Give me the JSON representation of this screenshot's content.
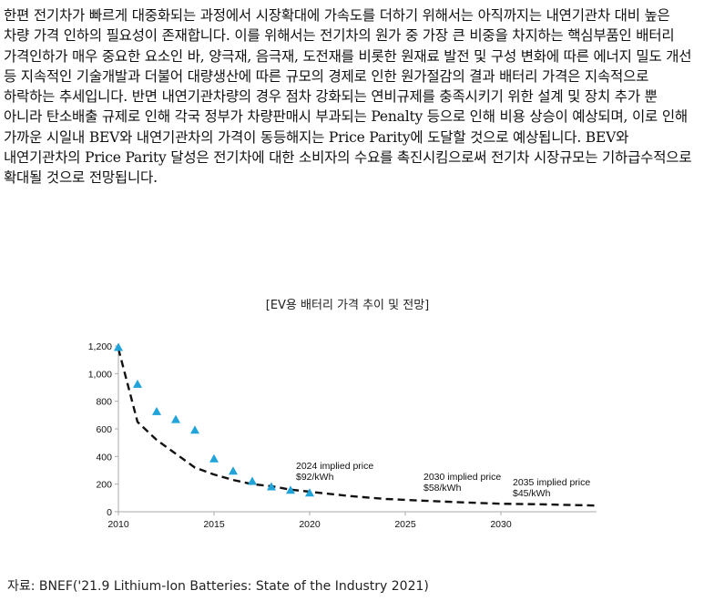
{
  "paragraph": "한편 전기차가 빠르게 대중화되는 과정에서 시장확대에 가속도를 더하기 위해서는 아직까지는 내연기관차 대비 높은 차량 가격 인하의 필요성이 존재합니다. 이를 위해서는 전기차의 원가 중 가장 큰 비중을 차지하는 핵심부품인 배터리 가격인하가 매우 중요한 요소인 바, 양극재, 음극재, 도전재를 비롯한 원재료 발전 및 구성 변화에 따른 에너지 밀도 개선 등 지속적인 기술개발과 더불어 대량생산에 따른 규모의 경제로 인한 원가절감의 결과 배터리 가격은 지속적으로 하락하는 추세입니다. 반면 내연기관차량의 경우 점차 강화되는 연비규제를 충족시키기 위한 설계 및 장치 추가 뿐 아니라 탄소배출 규제로 인해 각국 정부가 차량판매시 부과되는 Penalty 등으로 인해 비용 상승이 예상되며, 이로 인해 가까운 시일내 BEV와 내연기관차의 가격이 동등해지는 Price Parity에 도달할 것으로 예상됩니다. BEV와 내연기관차의 Price Parity 달성은 전기차에 대한 소비자의 수요를 촉진시킴으로써 전기차 시장규모는 기하급수적으로 확대될 것으로 전망됩니다.",
  "chart_title": "[EV용 배터리 가격 추이 및 전망]",
  "source": "자료: BNEF('21.9 Lithium-Ion Batteries: State of the Industry 2021)",
  "chart_data": {
    "type": "scatter",
    "title": "[EV용 배터리 가격 추이 및 전망]",
    "xlabel": "",
    "ylabel": "",
    "xlim": [
      2010,
      2035
    ],
    "ylim": [
      0,
      1200
    ],
    "x_ticks": [
      2010,
      2015,
      2020,
      2025,
      2030
    ],
    "y_ticks": [
      {
        "v": 0,
        "label": "0"
      },
      {
        "v": 200,
        "label": "200"
      },
      {
        "v": 400,
        "label": "400"
      },
      {
        "v": 600,
        "label": "600"
      },
      {
        "v": 800,
        "label": "800"
      },
      {
        "v": 1000,
        "label": "1,000"
      },
      {
        "v": 1200,
        "label": "1,200"
      }
    ],
    "grid": false,
    "series": [
      {
        "kind": "scatter",
        "marker": "triangle",
        "color": "#1fa3d9",
        "x": [
          2010,
          2011,
          2012,
          2013,
          2014,
          2015,
          2016,
          2017,
          2018,
          2019,
          2020
        ],
        "y": [
          1191,
          924,
          726,
          668,
          592,
          384,
          295,
          221,
          181,
          157,
          137
        ]
      },
      {
        "kind": "line",
        "style": "dashed",
        "color": "#111111",
        "x": [
          2010,
          2011,
          2012,
          2013,
          2014,
          2015,
          2016,
          2017,
          2018,
          2019,
          2020,
          2022,
          2024,
          2026,
          2028,
          2030,
          2032,
          2035
        ],
        "y": [
          1180,
          650,
          520,
          420,
          320,
          270,
          230,
          200,
          185,
          160,
          145,
          115,
          92,
          80,
          68,
          58,
          54,
          45
        ]
      }
    ],
    "annotations": [
      {
        "x": 2024,
        "y": 92,
        "lines": [
          "2024 implied price",
          "$92/kWh"
        ]
      },
      {
        "x": 2030,
        "y": 58,
        "lines": [
          "2030 implied price",
          "$58/kWh"
        ]
      },
      {
        "x": 2035,
        "y": 45,
        "lines": [
          "2035 implied price",
          "$45/kWh"
        ]
      }
    ],
    "colors": {
      "axis": "#aaaaaa",
      "text": "#111111"
    }
  }
}
